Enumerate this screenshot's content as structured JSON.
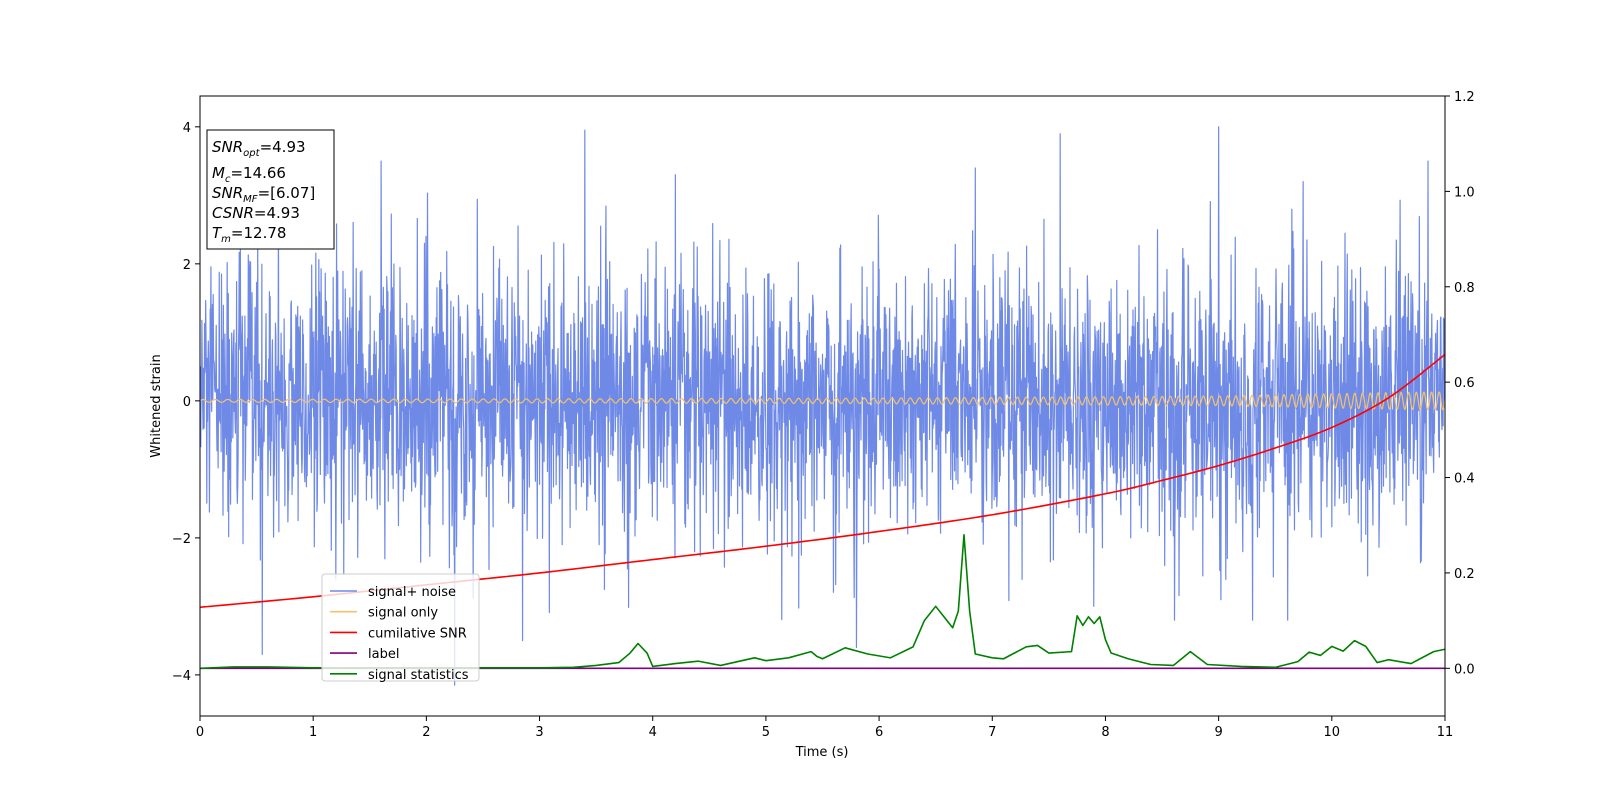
{
  "chart_data": {
    "type": "line",
    "xlabel": "Time (s)",
    "ylabel": "Whitened strain",
    "xlim": [
      0,
      11
    ],
    "ylim_left": [
      -4.6,
      4.45
    ],
    "ylim_right": [
      -0.1,
      1.2
    ],
    "x_ticks": [
      0,
      1,
      2,
      3,
      4,
      5,
      6,
      7,
      8,
      9,
      10,
      11
    ],
    "y_left_ticks": [
      -4,
      -2,
      0,
      2,
      4
    ],
    "y_right_ticks": [
      0.0,
      0.2,
      0.4,
      0.6,
      0.8,
      1.0,
      1.2
    ],
    "grid": false,
    "legend_position": "lower-left",
    "series": [
      {
        "name": "signal+ noise",
        "axis": "left",
        "color": "#6f8ae6",
        "kind": "noise",
        "sigma": 1.0,
        "peaks": [
          {
            "x": 1.6,
            "y": 3.5
          },
          {
            "x": 3.4,
            "y": 3.95
          },
          {
            "x": 4.2,
            "y": 3.3
          },
          {
            "x": 6.85,
            "y": 3.4
          },
          {
            "x": 7.6,
            "y": 3.9
          },
          {
            "x": 9.0,
            "y": 4.0
          },
          {
            "x": 10.85,
            "y": 3.5
          },
          {
            "x": 0.55,
            "y": -3.7
          },
          {
            "x": 2.25,
            "y": -4.15
          },
          {
            "x": 2.85,
            "y": -3.5
          },
          {
            "x": 5.8,
            "y": -3.6
          },
          {
            "x": 9.3,
            "y": -3.2
          }
        ]
      },
      {
        "name": "signal only",
        "axis": "left",
        "color": "#f5c26b",
        "kind": "chirp",
        "amplitude": [
          [
            0,
            0.02
          ],
          [
            6,
            0.04
          ],
          [
            9,
            0.07
          ],
          [
            10.5,
            0.12
          ],
          [
            11,
            0.13
          ]
        ]
      },
      {
        "name": "cumilative SNR",
        "axis": "right",
        "color": "#ff0000",
        "kind": "line",
        "x": [
          0,
          1,
          2,
          3,
          4,
          5,
          6,
          7,
          8,
          8.5,
          9,
          9.5,
          10,
          10.5,
          11
        ],
        "y": [
          0.128,
          0.15,
          0.175,
          0.2,
          0.228,
          0.256,
          0.287,
          0.322,
          0.366,
          0.394,
          0.425,
          0.462,
          0.505,
          0.567,
          0.658
        ]
      },
      {
        "name": "label",
        "axis": "right",
        "color": "#800080",
        "kind": "line",
        "x": [
          0,
          11
        ],
        "y": [
          0.0,
          0.0
        ]
      },
      {
        "name": "signal statistics",
        "axis": "right",
        "color": "#008000",
        "kind": "line",
        "x": [
          0,
          0.3,
          0.6,
          1.0,
          1.5,
          2.0,
          2.5,
          3.0,
          3.3,
          3.5,
          3.7,
          3.8,
          3.87,
          3.95,
          4.0,
          4.2,
          4.4,
          4.6,
          4.9,
          5.0,
          5.2,
          5.4,
          5.45,
          5.5,
          5.7,
          5.9,
          6.1,
          6.3,
          6.4,
          6.5,
          6.6,
          6.65,
          6.7,
          6.75,
          6.8,
          6.85,
          7.0,
          7.1,
          7.3,
          7.4,
          7.5,
          7.7,
          7.75,
          7.8,
          7.85,
          7.9,
          7.95,
          8.0,
          8.05,
          8.2,
          8.4,
          8.6,
          8.75,
          8.9,
          9.2,
          9.5,
          9.7,
          9.8,
          9.9,
          10.0,
          10.1,
          10.2,
          10.3,
          10.4,
          10.5,
          10.7,
          10.9,
          11.0
        ],
        "y": [
          0.0,
          0.003,
          0.003,
          0.001,
          0.001,
          0.001,
          0.001,
          0.001,
          0.002,
          0.006,
          0.012,
          0.032,
          0.052,
          0.032,
          0.004,
          0.01,
          0.015,
          0.006,
          0.022,
          0.016,
          0.022,
          0.035,
          0.025,
          0.02,
          0.043,
          0.03,
          0.022,
          0.045,
          0.1,
          0.13,
          0.1,
          0.085,
          0.12,
          0.28,
          0.12,
          0.03,
          0.022,
          0.02,
          0.045,
          0.048,
          0.032,
          0.035,
          0.11,
          0.09,
          0.108,
          0.094,
          0.108,
          0.06,
          0.032,
          0.02,
          0.008,
          0.006,
          0.035,
          0.008,
          0.004,
          0.002,
          0.014,
          0.034,
          0.027,
          0.046,
          0.036,
          0.058,
          0.046,
          0.012,
          0.018,
          0.01,
          0.035,
          0.04
        ]
      }
    ],
    "annotation_box": {
      "snr_opt": {
        "var": "SNR",
        "sub": "opt",
        "value": "=4.93"
      },
      "mc": {
        "var": "M",
        "sub": "c",
        "value": "=14.66"
      },
      "snr_mf": {
        "var": "SNR",
        "sub": "MF",
        "value": "=[6.07]"
      },
      "csnr": {
        "var": "CSNR",
        "sub": "",
        "value": "=4.93"
      },
      "tm": {
        "var": "T",
        "sub": "m",
        "value": "=12.78"
      }
    }
  }
}
